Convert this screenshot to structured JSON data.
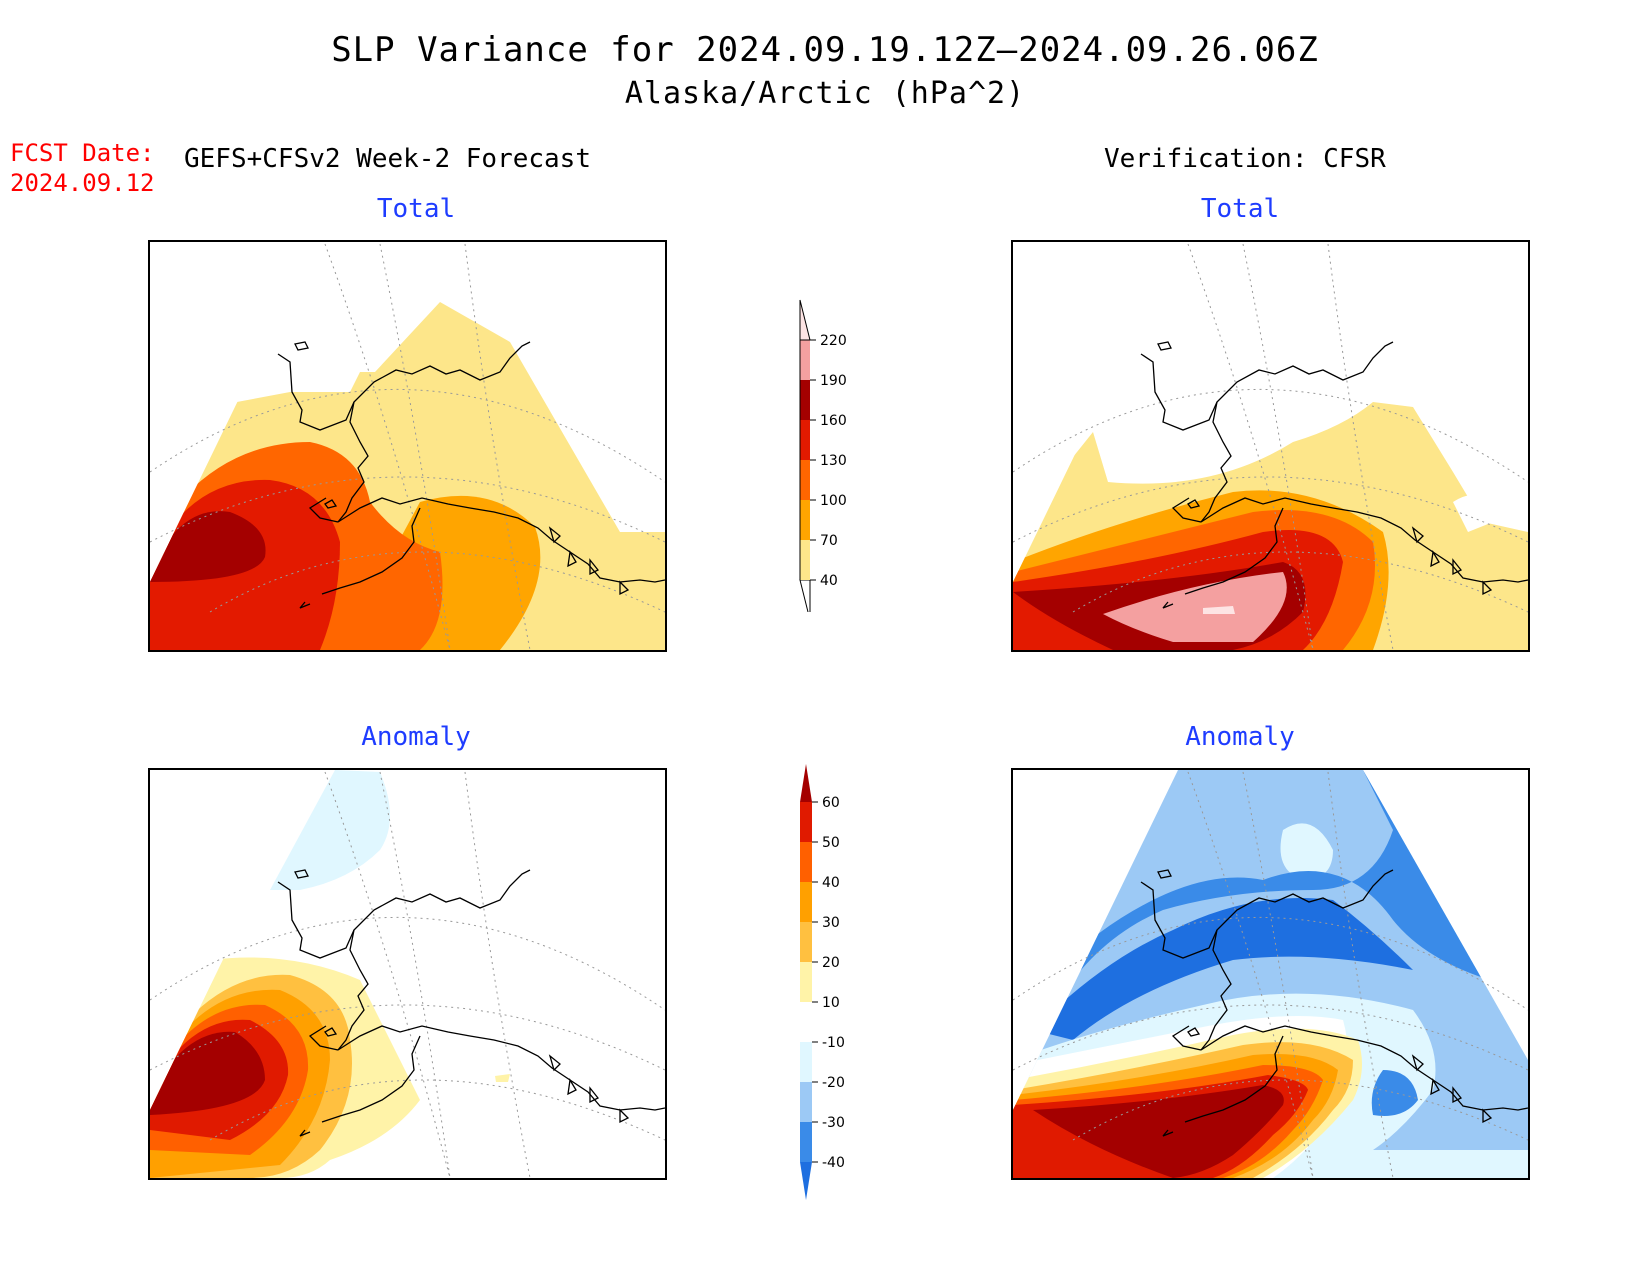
{
  "title": "SLP Variance for 2024.09.19.12Z–2024.09.26.06Z",
  "subtitle": "Alaska/Arctic (hPa^2)",
  "fcst_date": {
    "label": "FCST Date:",
    "value": "2024.09.12"
  },
  "left_header": "GEFS+CFSv2 Week-2 Forecast",
  "right_header": "Verification: CFSR",
  "panels": {
    "fcst_total": {
      "label": "Total"
    },
    "fcst_anom": {
      "label": "Anomaly"
    },
    "verif_total": {
      "label": "Total"
    },
    "verif_anom": {
      "label": "Anomaly"
    }
  },
  "total_colorbar": {
    "levels": [
      "40",
      "70",
      "100",
      "130",
      "160",
      "190",
      "220"
    ],
    "colors": [
      "#fde68a",
      "#ffa500",
      "#ff6600",
      "#e31a00",
      "#a40000",
      "#f4a0a0",
      "#fde4e4"
    ]
  },
  "anomaly_colorbar": {
    "levels": [
      "-40",
      "-30",
      "-20",
      "-10",
      "10",
      "20",
      "30",
      "40",
      "50",
      "60"
    ],
    "colors": [
      "#1e6fe0",
      "#3a8be8",
      "#9cc9f5",
      "#e0f7ff",
      "#ffffff",
      "#fff3a8",
      "#ffc040",
      "#ffa000",
      "#ff6000",
      "#e01a00",
      "#a40000"
    ]
  },
  "colors": {
    "title_blue": "#1e3cff",
    "fcst_red": "#ff0000"
  }
}
